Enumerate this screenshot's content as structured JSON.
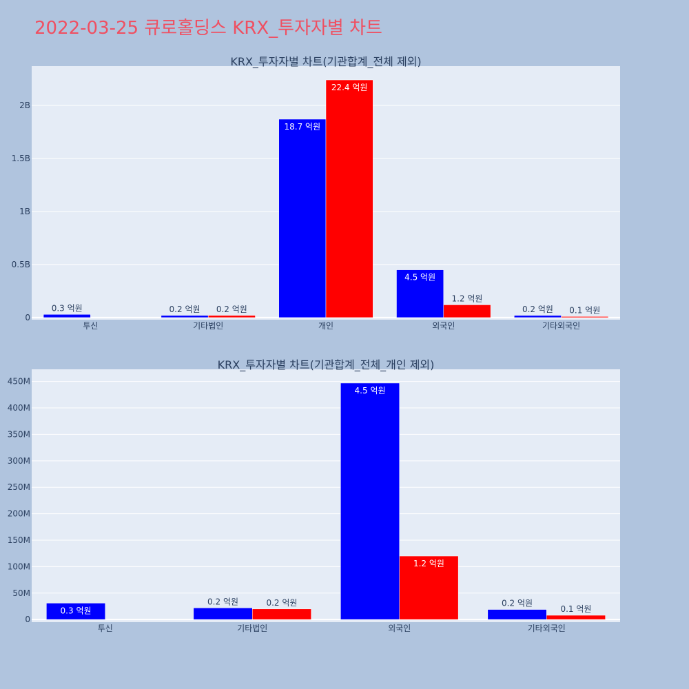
{
  "page": {
    "title": "2022-03-25 큐로홀딩스 KRX_투자자별 차트",
    "title_color": "#ef5062",
    "background": "#b0c4de",
    "plot_background": "#e5ecf6"
  },
  "colors": {
    "series_a": "#0000ff",
    "series_b": "#ff0000",
    "text": "#2a3f5f"
  },
  "chart_data": [
    {
      "type": "bar",
      "title": "KRX_투자자별 차트(기관합계_전체 제외)",
      "categories": [
        "투신",
        "기타법인",
        "개인",
        "외국인",
        "기타외국인"
      ],
      "series": [
        {
          "values": [
            30000000,
            20000000,
            1870000000,
            450000000,
            20000000
          ],
          "labels": [
            "0.3 억원",
            "0.2 억원",
            "18.7 억원",
            "4.5 억원",
            "0.2 억원"
          ],
          "color": "#0000ff"
        },
        {
          "values": [
            0,
            20000000,
            2240000000,
            120000000,
            10000000
          ],
          "labels": [
            "",
            "0.2 억원",
            "22.4 억원",
            "1.2 억원",
            "0.1 억원"
          ],
          "color": "#ff0000"
        }
      ],
      "ylim": [
        -20000000,
        2370000000
      ],
      "yticks": [
        0,
        500000000,
        1000000000,
        1500000000,
        2000000000
      ],
      "ytick_labels": [
        "0",
        "0.5B",
        "1B",
        "1.5B",
        "2B"
      ],
      "grid": true,
      "xlabel": "",
      "ylabel": ""
    },
    {
      "type": "bar",
      "title": "KRX_투자자별 차트(기관합계_전체_개인 제외)",
      "categories": [
        "투신",
        "기타법인",
        "외국인",
        "기타외국인"
      ],
      "series": [
        {
          "values": [
            31000000,
            22000000,
            447000000,
            19000000
          ],
          "labels": [
            "0.3 억원",
            "0.2 억원",
            "4.5 억원",
            "0.2 억원"
          ],
          "color": "#0000ff"
        },
        {
          "values": [
            0,
            20000000,
            120000000,
            8000000
          ],
          "labels": [
            "",
            "0.2 억원",
            "1.2 억원",
            "0.1 억원"
          ],
          "color": "#ff0000"
        }
      ],
      "ylim": [
        -5000000,
        473000000
      ],
      "yticks": [
        0,
        50000000,
        100000000,
        150000000,
        200000000,
        250000000,
        300000000,
        350000000,
        400000000,
        450000000
      ],
      "ytick_labels": [
        "0",
        "50M",
        "100M",
        "150M",
        "200M",
        "250M",
        "300M",
        "350M",
        "400M",
        "450M"
      ],
      "grid": true,
      "xlabel": "",
      "ylabel": ""
    }
  ]
}
